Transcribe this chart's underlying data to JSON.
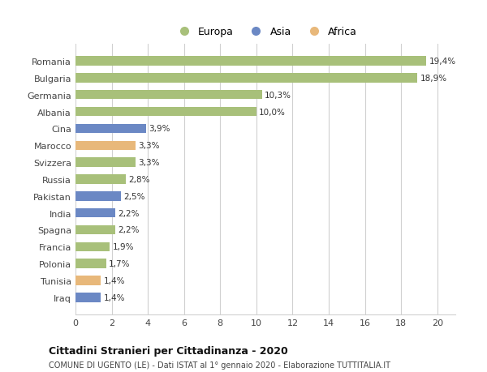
{
  "categories": [
    "Romania",
    "Bulgaria",
    "Germania",
    "Albania",
    "Cina",
    "Marocco",
    "Svizzera",
    "Russia",
    "Pakistan",
    "India",
    "Spagna",
    "Francia",
    "Polonia",
    "Tunisia",
    "Iraq"
  ],
  "values": [
    19.4,
    18.9,
    10.3,
    10.0,
    3.9,
    3.3,
    3.3,
    2.8,
    2.5,
    2.2,
    2.2,
    1.9,
    1.7,
    1.4,
    1.4
  ],
  "labels": [
    "19,4%",
    "18,9%",
    "10,3%",
    "10,0%",
    "3,9%",
    "3,3%",
    "3,3%",
    "2,8%",
    "2,5%",
    "2,2%",
    "2,2%",
    "1,9%",
    "1,7%",
    "1,4%",
    "1,4%"
  ],
  "continent": [
    "Europa",
    "Europa",
    "Europa",
    "Europa",
    "Asia",
    "Africa",
    "Europa",
    "Europa",
    "Asia",
    "Asia",
    "Europa",
    "Europa",
    "Europa",
    "Africa",
    "Asia"
  ],
  "colors": {
    "Europa": "#a8c07a",
    "Asia": "#6b88c4",
    "Africa": "#e8b87a"
  },
  "xlim": [
    0,
    21
  ],
  "xticks": [
    0,
    2,
    4,
    6,
    8,
    10,
    12,
    14,
    16,
    18,
    20
  ],
  "title": "Cittadini Stranieri per Cittadinanza - 2020",
  "subtitle": "COMUNE DI UGENTO (LE) - Dati ISTAT al 1° gennaio 2020 - Elaborazione TUTTITALIA.IT",
  "background_color": "#ffffff",
  "grid_color": "#d0d0d0",
  "bar_height": 0.55
}
